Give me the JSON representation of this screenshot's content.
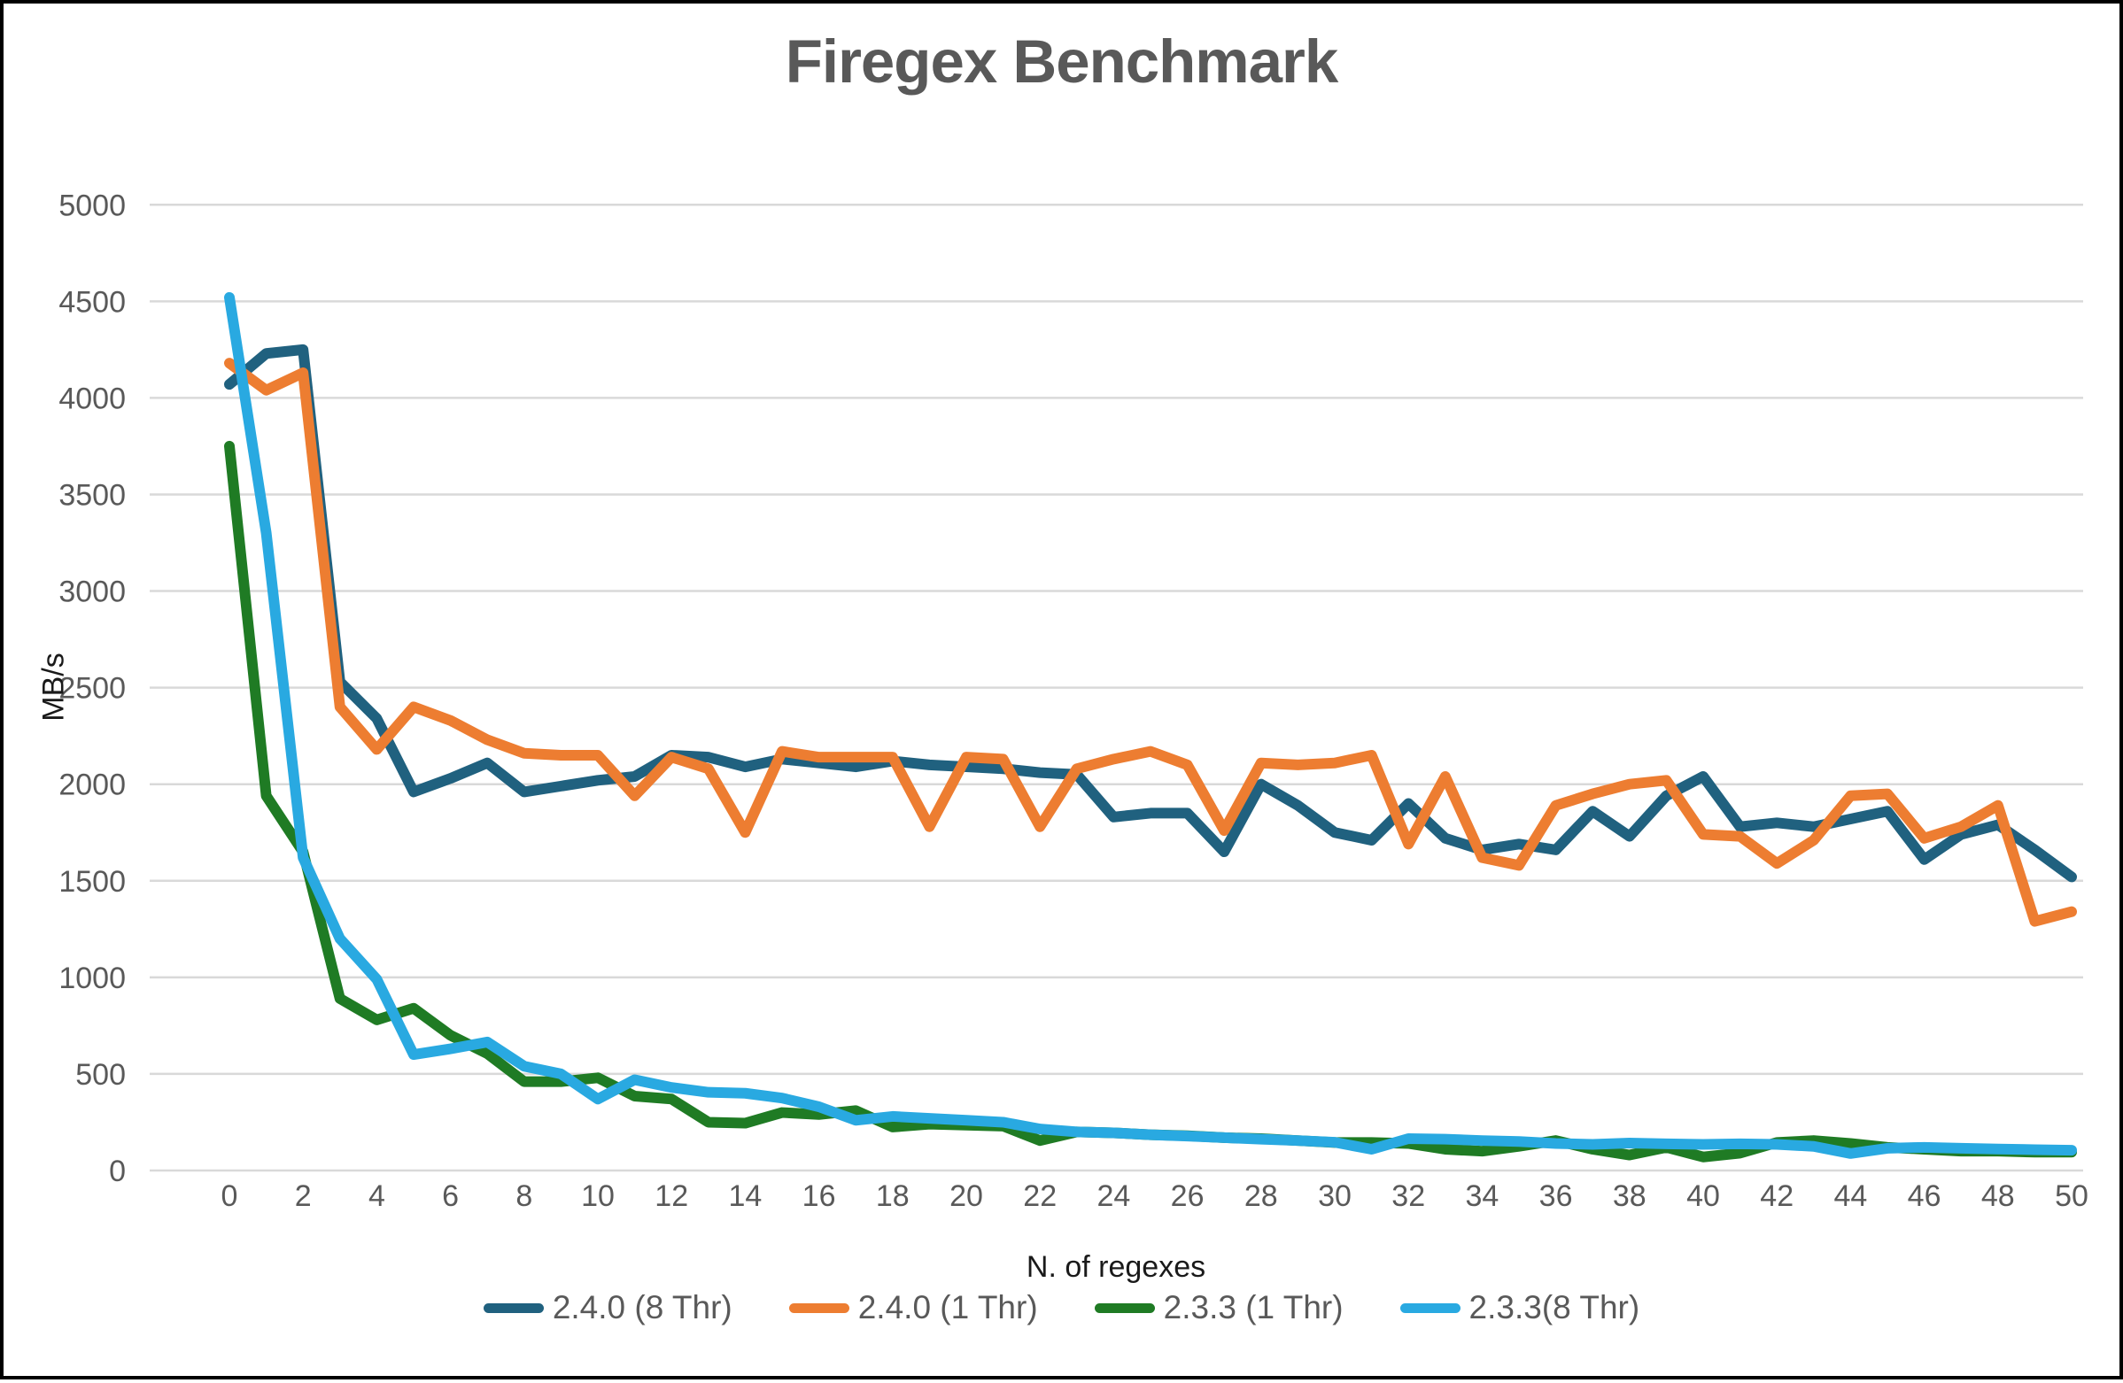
{
  "title": "Firegex Benchmark",
  "colors": {
    "background": "#ffffff",
    "border": "#000000",
    "gridline": "#d9d9d9",
    "tick_label": "#595959",
    "title_text": "#595959",
    "axis_title_text": "#1a1a1a"
  },
  "chart_data": {
    "type": "line",
    "title": "Firegex Benchmark",
    "xlabel": "N. of regexes",
    "ylabel": "MB/s",
    "ylim": [
      0,
      5000
    ],
    "xlim": [
      0,
      50
    ],
    "grid": true,
    "legend_position": "bottom",
    "y_ticks": [
      0,
      500,
      1000,
      1500,
      2000,
      2500,
      3000,
      3500,
      4000,
      4500,
      5000
    ],
    "x_ticks": [
      0,
      2,
      4,
      6,
      8,
      10,
      12,
      14,
      16,
      18,
      20,
      22,
      24,
      26,
      28,
      30,
      32,
      34,
      36,
      38,
      40,
      42,
      44,
      46,
      48,
      50
    ],
    "x": [
      0,
      1,
      2,
      3,
      4,
      5,
      6,
      7,
      8,
      9,
      10,
      11,
      12,
      13,
      14,
      15,
      16,
      17,
      18,
      19,
      20,
      21,
      22,
      23,
      24,
      25,
      26,
      27,
      28,
      29,
      30,
      31,
      32,
      33,
      34,
      35,
      36,
      37,
      38,
      39,
      40,
      41,
      42,
      43,
      44,
      45,
      46,
      47,
      48,
      49,
      50
    ],
    "series": [
      {
        "name": "2.4.0 (8 Thr)",
        "color": "#20617F",
        "values": [
          4070,
          4230,
          4250,
          2530,
          2340,
          1960,
          2030,
          2110,
          1960,
          1990,
          2020,
          2040,
          2150,
          2140,
          2090,
          2130,
          2110,
          2090,
          2120,
          2100,
          2090,
          2080,
          2060,
          2050,
          1830,
          1850,
          1850,
          1650,
          2000,
          1890,
          1750,
          1710,
          1900,
          1720,
          1660,
          1690,
          1660,
          1860,
          1730,
          1940,
          2040,
          1780,
          1800,
          1780,
          1820,
          1860,
          1610,
          1740,
          1790,
          1660,
          1520
        ]
      },
      {
        "name": "2.4.0 (1 Thr)",
        "color": "#ED7D31",
        "values": [
          4180,
          4040,
          4130,
          2400,
          2180,
          2400,
          2330,
          2230,
          2160,
          2150,
          2150,
          1940,
          2140,
          2080,
          1750,
          2170,
          2140,
          2140,
          2140,
          1780,
          2140,
          2130,
          1780,
          2080,
          2130,
          2170,
          2100,
          1760,
          2110,
          2100,
          2110,
          2150,
          1690,
          2040,
          1620,
          1580,
          1890,
          1950,
          2000,
          2020,
          1740,
          1730,
          1590,
          1710,
          1940,
          1950,
          1720,
          1780,
          1890,
          1290,
          1340
        ]
      },
      {
        "name": "2.3.3 (1 Thr)",
        "color": "#1F7B24",
        "values": [
          3750,
          1940,
          1650,
          890,
          780,
          840,
          700,
          605,
          460,
          460,
          480,
          385,
          370,
          250,
          245,
          300,
          290,
          310,
          225,
          240,
          235,
          230,
          155,
          200,
          195,
          185,
          180,
          170,
          165,
          155,
          145,
          145,
          140,
          110,
          100,
          125,
          155,
          110,
          80,
          120,
          70,
          90,
          145,
          155,
          140,
          120,
          110,
          100,
          100,
          95,
          95
        ]
      },
      {
        "name": "2.3.3(8 Thr)",
        "color": "#29A9E1",
        "values": [
          4520,
          3300,
          1620,
          1200,
          990,
          600,
          630,
          665,
          540,
          500,
          370,
          470,
          430,
          405,
          400,
          375,
          330,
          260,
          280,
          270,
          260,
          250,
          215,
          200,
          195,
          185,
          178,
          170,
          162,
          155,
          146,
          110,
          165,
          162,
          155,
          150,
          140,
          135,
          142,
          138,
          135,
          138,
          135,
          125,
          88,
          115,
          120,
          115,
          111,
          108,
          105
        ]
      }
    ]
  }
}
